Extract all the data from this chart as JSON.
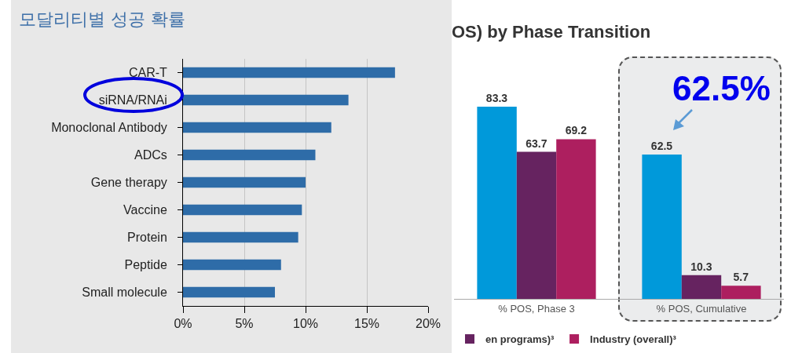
{
  "chart_data": [
    {
      "type": "bar",
      "orientation": "horizontal",
      "title": "모달리티별 성공 확률",
      "categories": [
        "CAR-T",
        "siRNA/RNAi",
        "Monoclonal Antibody",
        "ADCs",
        "Gene therapy",
        "Vaccine",
        "Protein",
        "Peptide",
        "Small molecule"
      ],
      "values": [
        17.3,
        13.5,
        12.1,
        10.8,
        10.0,
        9.7,
        9.4,
        8.0,
        7.5
      ],
      "color": "#2e6ca8",
      "xlim": [
        0,
        20
      ],
      "xticks": [
        {
          "value": 0,
          "label": "0%"
        },
        {
          "value": 5,
          "label": "5%"
        },
        {
          "value": 10,
          "label": "10%"
        },
        {
          "value": 15,
          "label": "15%"
        },
        {
          "value": 20,
          "label": "20%"
        }
      ],
      "grid": "x"
    },
    {
      "type": "bar",
      "title": "OS) by Phase Transition",
      "categories": [
        "% POS, Phase 3",
        "% POS, Cumulative"
      ],
      "series": [
        {
          "color": "#0099da",
          "values": [
            83.3,
            62.5
          ]
        },
        {
          "name": "en programs)³",
          "color": "#662360",
          "values": [
            63.7,
            10.3
          ]
        },
        {
          "name": "Industry (overall)³",
          "color": "#ad1f5f",
          "values": [
            69.2,
            5.7
          ]
        }
      ],
      "data_labels": true,
      "legend": "bottom",
      "annotations": [
        "62.5%"
      ]
    }
  ]
}
